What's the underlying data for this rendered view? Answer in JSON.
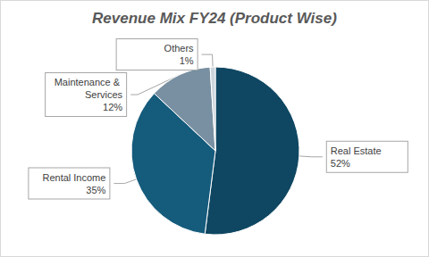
{
  "chart_data": {
    "type": "pie",
    "title": "Revenue Mix FY24 (Product Wise)",
    "categories": [
      "Real Estate",
      "Rental Income",
      "Maintenance & Services",
      "Others"
    ],
    "values": [
      52,
      35,
      12,
      1
    ],
    "value_labels": [
      "52%",
      "35%",
      "12%",
      "1%"
    ],
    "colors": [
      "#0f4762",
      "#155b7c",
      "#7890a2",
      "#cdd6dd"
    ],
    "data_labels": true
  }
}
